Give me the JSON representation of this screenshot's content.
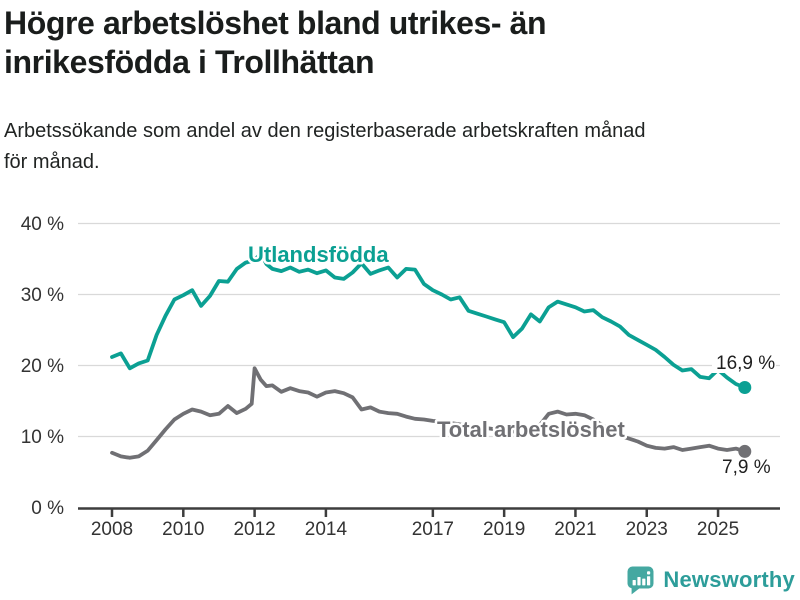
{
  "header": {
    "title_line1": "Högre arbetslöshet bland utrikes- än",
    "title_line2": "inrikesfödda i Trollhättan",
    "subtitle_line1": "Arbetssökande som andel av den registerbaserade arbetskraften månad",
    "subtitle_line2": "för månad."
  },
  "footer": {
    "brand": "Newsworthy",
    "brand_color": "#2d9d9a"
  },
  "chart_data": {
    "type": "line",
    "title": "Högre arbetslöshet bland utrikes- än inrikesfödda i Trollhättan",
    "subtitle": "Arbetssökande som andel av den registerbaserade arbetskraften månad för månad.",
    "grid": "horizontal",
    "legend_position": "inline-labels",
    "x_axis": {
      "ticks": [
        2008,
        2010,
        2012,
        2014,
        2017,
        2019,
        2021,
        2023,
        2025
      ],
      "range": [
        2008,
        2025.9
      ]
    },
    "y_axis": {
      "unit": "%",
      "ticks": [
        0,
        10,
        20,
        30,
        40
      ],
      "tick_labels": [
        "0 %",
        "10 %",
        "20 %",
        "30 %",
        "40 %"
      ],
      "range": [
        0,
        40
      ]
    },
    "series": [
      {
        "name": "Utlandsfödda",
        "color": "#0ba093",
        "end_label": "16,9 %",
        "end_value": 16.9,
        "x": [
          2008,
          2008.25,
          2008.5,
          2008.75,
          2009,
          2009.25,
          2009.5,
          2009.75,
          2010,
          2010.25,
          2010.5,
          2010.75,
          2011,
          2011.25,
          2011.5,
          2011.75,
          2012,
          2012.17,
          2012.33,
          2012.5,
          2012.75,
          2013,
          2013.25,
          2013.5,
          2013.75,
          2014,
          2014.25,
          2014.5,
          2014.75,
          2015,
          2015.25,
          2015.5,
          2015.75,
          2016,
          2016.25,
          2016.5,
          2016.75,
          2017,
          2017.25,
          2017.5,
          2017.75,
          2018,
          2018.25,
          2018.5,
          2018.75,
          2019,
          2019.25,
          2019.5,
          2019.75,
          2020,
          2020.25,
          2020.5,
          2020.75,
          2021,
          2021.25,
          2021.5,
          2021.75,
          2022,
          2022.25,
          2022.5,
          2022.75,
          2023,
          2023.25,
          2023.5,
          2023.75,
          2024,
          2024.25,
          2024.5,
          2024.75,
          2025,
          2025.25,
          2025.5,
          2025.75
        ],
        "y": [
          21.2,
          21.7,
          19.6,
          20.3,
          20.7,
          24.3,
          27.0,
          29.3,
          29.9,
          30.6,
          28.4,
          29.8,
          31.9,
          31.8,
          33.6,
          34.5,
          34.8,
          35.8,
          34.3,
          33.6,
          33.3,
          33.8,
          33.2,
          33.5,
          33.0,
          33.4,
          32.4,
          32.2,
          33.1,
          34.4,
          32.9,
          33.4,
          33.8,
          32.4,
          33.6,
          33.5,
          31.5,
          30.6,
          30.0,
          29.3,
          29.6,
          27.7,
          27.3,
          26.9,
          26.5,
          26.1,
          24.0,
          25.2,
          27.2,
          26.2,
          28.2,
          29.0,
          28.6,
          28.2,
          27.6,
          27.8,
          26.8,
          26.2,
          25.5,
          24.3,
          23.6,
          22.9,
          22.2,
          21.2,
          20.1,
          19.3,
          19.5,
          18.4,
          18.2,
          19.4,
          18.3,
          17.4,
          16.9
        ]
      },
      {
        "name": "Total arbetslöshet",
        "color": "#707074",
        "end_label": "7,9 %",
        "end_value": 7.9,
        "x": [
          2008,
          2008.25,
          2008.5,
          2008.75,
          2009,
          2009.25,
          2009.5,
          2009.75,
          2010,
          2010.25,
          2010.5,
          2010.75,
          2011,
          2011.25,
          2011.5,
          2011.75,
          2011.92,
          2012,
          2012.17,
          2012.33,
          2012.5,
          2012.75,
          2013,
          2013.25,
          2013.5,
          2013.75,
          2014,
          2014.25,
          2014.5,
          2014.75,
          2015,
          2015.25,
          2015.5,
          2015.75,
          2016,
          2016.25,
          2016.5,
          2016.75,
          2017,
          2017.25,
          2017.5,
          2017.75,
          2018,
          2018.25,
          2018.5,
          2018.75,
          2019,
          2019.25,
          2019.5,
          2019.75,
          2020,
          2020.25,
          2020.5,
          2020.75,
          2021,
          2021.25,
          2021.5,
          2021.75,
          2022,
          2022.25,
          2022.5,
          2022.75,
          2023,
          2023.25,
          2023.5,
          2023.75,
          2024,
          2024.25,
          2024.5,
          2024.75,
          2025,
          2025.25,
          2025.5,
          2025.75
        ],
        "y": [
          7.7,
          7.2,
          7.0,
          7.2,
          8.0,
          9.5,
          11.0,
          12.4,
          13.2,
          13.8,
          13.5,
          13.0,
          13.2,
          14.3,
          13.3,
          13.9,
          14.6,
          19.6,
          18.0,
          17.1,
          17.2,
          16.3,
          16.8,
          16.4,
          16.2,
          15.6,
          16.2,
          16.4,
          16.1,
          15.5,
          13.8,
          14.1,
          13.5,
          13.3,
          13.2,
          12.8,
          12.5,
          12.4,
          12.2,
          12.1,
          11.9,
          11.7,
          11.5,
          11.3,
          11.2,
          11.0,
          10.9,
          10.7,
          10.8,
          11.1,
          11.6,
          13.2,
          13.5,
          13.1,
          13.2,
          13.0,
          12.4,
          11.6,
          10.8,
          10.1,
          9.7,
          9.3,
          8.7,
          8.4,
          8.3,
          8.5,
          8.1,
          8.3,
          8.5,
          8.7,
          8.3,
          8.1,
          8.3,
          7.9
        ]
      }
    ]
  }
}
